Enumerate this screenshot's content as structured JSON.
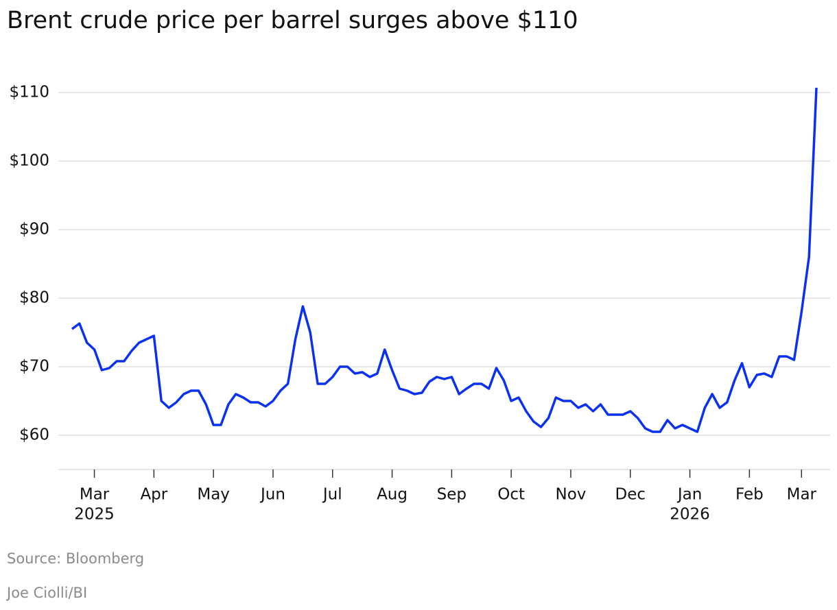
{
  "chart_data": {
    "type": "line",
    "title": "Brent crude price per barrel surges above $110",
    "source": "Source: Bloomberg",
    "credit": "Joe Ciolli/BI",
    "categories": [
      null,
      null,
      null,
      "Mar",
      null,
      null,
      null,
      null,
      null,
      null,
      null,
      "Apr",
      null,
      null,
      null,
      null,
      null,
      null,
      null,
      "May",
      null,
      null,
      null,
      null,
      null,
      null,
      null,
      "Jun",
      null,
      null,
      null,
      null,
      null,
      null,
      null,
      "Jul",
      null,
      null,
      null,
      null,
      null,
      null,
      null,
      "Aug",
      null,
      null,
      null,
      null,
      null,
      null,
      null,
      "Sep",
      null,
      null,
      null,
      null,
      null,
      null,
      null,
      "Oct",
      null,
      null,
      null,
      null,
      null,
      null,
      null,
      "Nov",
      null,
      null,
      null,
      null,
      null,
      null,
      null,
      "Dec",
      null,
      null,
      null,
      null,
      null,
      null,
      null,
      "Jan",
      null,
      null,
      null,
      null,
      null,
      null,
      null,
      "Feb",
      null,
      null,
      null,
      null,
      null,
      null,
      "Mar",
      null,
      null
    ],
    "category_years": [
      null,
      null,
      null,
      "2025",
      null,
      null,
      null,
      null,
      null,
      null,
      null,
      null,
      null,
      null,
      null,
      null,
      null,
      null,
      null,
      null,
      null,
      null,
      null,
      null,
      null,
      null,
      null,
      null,
      null,
      null,
      null,
      null,
      null,
      null,
      null,
      null,
      null,
      null,
      null,
      null,
      null,
      null,
      null,
      null,
      null,
      null,
      null,
      null,
      null,
      null,
      null,
      null,
      null,
      null,
      null,
      null,
      null,
      null,
      null,
      null,
      null,
      null,
      null,
      null,
      null,
      null,
      null,
      null,
      null,
      null,
      null,
      null,
      null,
      null,
      null,
      null,
      null,
      null,
      null,
      null,
      null,
      null,
      null,
      "2026",
      null,
      null,
      null,
      null,
      null,
      null,
      null,
      null,
      null,
      null,
      null,
      null,
      null,
      null,
      null,
      null,
      null
    ],
    "series": [
      {
        "name": "Brent crude",
        "color": "#0b31f0",
        "values": [
          75.5,
          76.3,
          73.5,
          72.5,
          69.5,
          69.8,
          70.8,
          70.8,
          72.3,
          73.5,
          74,
          74.5,
          65,
          64,
          64.8,
          66,
          66.5,
          66.5,
          64.5,
          61.5,
          61.5,
          64.5,
          66,
          65.5,
          64.8,
          64.8,
          64.2,
          65,
          66.5,
          67.5,
          74,
          78.8,
          75,
          67.5,
          67.5,
          68.5,
          70,
          70,
          69,
          69.2,
          68.5,
          69,
          72.5,
          69.5,
          66.8,
          66.5,
          66,
          66.2,
          67.8,
          68.5,
          68.2,
          68.5,
          66,
          66.8,
          67.5,
          67.5,
          66.8,
          69.8,
          68,
          65,
          65.5,
          63.5,
          62,
          61.2,
          62.5,
          65.5,
          65,
          65,
          64,
          64.5,
          63.5,
          64.5,
          63,
          63,
          63,
          63.5,
          62.5,
          61,
          60.5,
          60.5,
          62.2,
          61,
          61.5,
          61,
          60.5,
          64,
          66,
          64,
          64.8,
          68,
          70.5,
          67,
          68.8,
          69,
          68.5,
          71.5,
          71.5,
          71,
          78,
          86,
          110.7
        ]
      }
    ],
    "ylim": [
      55,
      111.5
    ],
    "yticks": [
      {
        "value": 60,
        "label": "$60"
      },
      {
        "value": 70,
        "label": "$70"
      },
      {
        "value": 80,
        "label": "$80"
      },
      {
        "value": 90,
        "label": "$90"
      },
      {
        "value": 100,
        "label": "$100"
      },
      {
        "value": 110,
        "label": "$110"
      }
    ],
    "grid": true
  }
}
